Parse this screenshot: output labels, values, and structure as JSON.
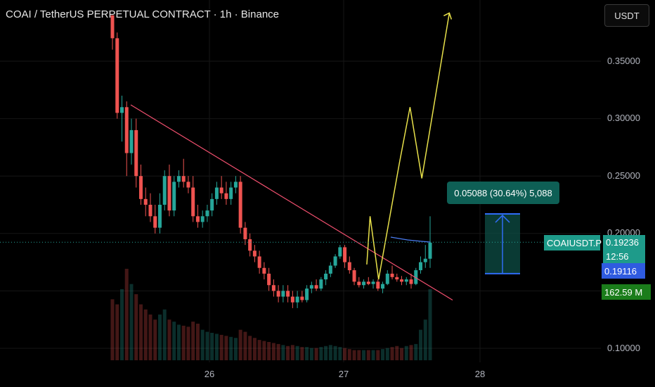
{
  "header": {
    "title": "COAI / TetherUS PERPETUAL CONTRACT · 1h · Binance",
    "unit_button": "USDT"
  },
  "colors": {
    "up": "#26a69a",
    "down": "#ef5350",
    "trendline": "#f2506f",
    "projection": "#e8e14a",
    "range_line": "#2f6cf5",
    "background": "#000000"
  },
  "y_axis_labels": [
    "0.35000",
    "0.30000",
    "0.25000",
    "0.20000",
    "0.10000"
  ],
  "x_axis_labels": [
    "26",
    "27",
    "28"
  ],
  "price_tags": {
    "symbol": "COAIUSDT.P",
    "last_price": "0.19236",
    "countdown": "12:56",
    "line_price": "0.19116",
    "volume": "162.59 M"
  },
  "measure_label": "0.05088 (30.64%) 5,088",
  "chart_data": {
    "type": "candlestick",
    "title": "COAI / TetherUS PERPETUAL CONTRACT · 1h · Binance",
    "ylim": [
      0.08,
      0.39
    ],
    "x_ticks": [
      "26",
      "27",
      "28"
    ],
    "candles": [
      [
        0.39,
        0.39,
        0.36,
        0.37
      ],
      [
        0.37,
        0.375,
        0.3,
        0.305
      ],
      [
        0.305,
        0.32,
        0.28,
        0.31
      ],
      [
        0.31,
        0.315,
        0.25,
        0.27
      ],
      [
        0.27,
        0.3,
        0.26,
        0.29
      ],
      [
        0.29,
        0.3,
        0.24,
        0.25
      ],
      [
        0.25,
        0.26,
        0.225,
        0.23
      ],
      [
        0.23,
        0.24,
        0.215,
        0.225
      ],
      [
        0.225,
        0.235,
        0.21,
        0.215
      ],
      [
        0.215,
        0.225,
        0.2,
        0.205
      ],
      [
        0.205,
        0.235,
        0.2,
        0.225
      ],
      [
        0.225,
        0.255,
        0.22,
        0.25
      ],
      [
        0.25,
        0.26,
        0.215,
        0.22
      ],
      [
        0.22,
        0.25,
        0.215,
        0.245
      ],
      [
        0.245,
        0.255,
        0.24,
        0.25
      ],
      [
        0.25,
        0.265,
        0.24,
        0.245
      ],
      [
        0.245,
        0.25,
        0.235,
        0.24
      ],
      [
        0.24,
        0.25,
        0.21,
        0.215
      ],
      [
        0.215,
        0.225,
        0.205,
        0.21
      ],
      [
        0.21,
        0.22,
        0.205,
        0.215
      ],
      [
        0.215,
        0.225,
        0.21,
        0.22
      ],
      [
        0.22,
        0.235,
        0.215,
        0.23
      ],
      [
        0.23,
        0.245,
        0.225,
        0.24
      ],
      [
        0.24,
        0.25,
        0.23,
        0.235
      ],
      [
        0.235,
        0.245,
        0.225,
        0.23
      ],
      [
        0.23,
        0.245,
        0.225,
        0.24
      ],
      [
        0.24,
        0.25,
        0.235,
        0.245
      ],
      [
        0.245,
        0.25,
        0.2,
        0.205
      ],
      [
        0.205,
        0.21,
        0.19,
        0.195
      ],
      [
        0.195,
        0.2,
        0.18,
        0.185
      ],
      [
        0.185,
        0.19,
        0.175,
        0.18
      ],
      [
        0.18,
        0.185,
        0.165,
        0.17
      ],
      [
        0.17,
        0.175,
        0.16,
        0.165
      ],
      [
        0.165,
        0.17,
        0.15,
        0.155
      ],
      [
        0.155,
        0.16,
        0.145,
        0.15
      ],
      [
        0.15,
        0.155,
        0.14,
        0.145
      ],
      [
        0.145,
        0.155,
        0.14,
        0.15
      ],
      [
        0.15,
        0.155,
        0.14,
        0.145
      ],
      [
        0.145,
        0.15,
        0.135,
        0.14
      ],
      [
        0.14,
        0.15,
        0.135,
        0.145
      ],
      [
        0.145,
        0.15,
        0.14,
        0.142
      ],
      [
        0.142,
        0.155,
        0.14,
        0.152
      ],
      [
        0.152,
        0.158,
        0.148,
        0.155
      ],
      [
        0.155,
        0.16,
        0.15,
        0.152
      ],
      [
        0.152,
        0.162,
        0.15,
        0.16
      ],
      [
        0.16,
        0.168,
        0.155,
        0.165
      ],
      [
        0.165,
        0.175,
        0.162,
        0.172
      ],
      [
        0.172,
        0.182,
        0.17,
        0.18
      ],
      [
        0.18,
        0.19,
        0.178,
        0.188
      ],
      [
        0.188,
        0.19,
        0.17,
        0.175
      ],
      [
        0.175,
        0.18,
        0.165,
        0.168
      ],
      [
        0.168,
        0.17,
        0.155,
        0.158
      ],
      [
        0.158,
        0.162,
        0.153,
        0.155
      ],
      [
        0.155,
        0.16,
        0.152,
        0.158
      ],
      [
        0.158,
        0.162,
        0.155,
        0.156
      ],
      [
        0.156,
        0.16,
        0.152,
        0.158
      ],
      [
        0.158,
        0.16,
        0.15,
        0.152
      ],
      [
        0.152,
        0.158,
        0.148,
        0.156
      ],
      [
        0.156,
        0.168,
        0.155,
        0.165
      ],
      [
        0.165,
        0.172,
        0.16,
        0.162
      ],
      [
        0.162,
        0.165,
        0.158,
        0.16
      ],
      [
        0.16,
        0.163,
        0.155,
        0.158
      ],
      [
        0.158,
        0.162,
        0.155,
        0.16
      ],
      [
        0.16,
        0.165,
        0.152,
        0.156
      ],
      [
        0.156,
        0.17,
        0.155,
        0.168
      ],
      [
        0.168,
        0.18,
        0.165,
        0.175
      ],
      [
        0.175,
        0.19,
        0.17,
        0.178
      ],
      [
        0.178,
        0.215,
        0.17,
        0.192
      ]
    ],
    "volumes": [
      60,
      55,
      70,
      90,
      75,
      65,
      55,
      50,
      45,
      40,
      45,
      50,
      40,
      38,
      35,
      34,
      33,
      38,
      36,
      30,
      28,
      27,
      26,
      25,
      24,
      23,
      22,
      30,
      28,
      24,
      22,
      20,
      19,
      18,
      17,
      16,
      15,
      14,
      15,
      14,
      13,
      13,
      12,
      12,
      13,
      14,
      15,
      14,
      13,
      12,
      11,
      10,
      10,
      10,
      10,
      10,
      10,
      11,
      12,
      13,
      14,
      12,
      14,
      15,
      16,
      30,
      40,
      70
    ],
    "trendline": [
      [
        0.0,
        0.312
      ],
      [
        1.0,
        0.142
      ]
    ],
    "projection_path": [
      [
        0.56,
        0.173
      ],
      [
        0.565,
        0.215
      ],
      [
        0.578,
        0.16
      ],
      [
        0.61,
        0.262
      ],
      [
        0.626,
        0.31
      ],
      [
        0.644,
        0.248
      ],
      [
        0.686,
        0.392
      ]
    ],
    "measure": {
      "top": 0.217,
      "bottom": 0.165,
      "change": "0.05088",
      "percent": "30.64%",
      "ticks": "5,088"
    },
    "last_price": 0.19236,
    "line_price": 0.19116
  }
}
